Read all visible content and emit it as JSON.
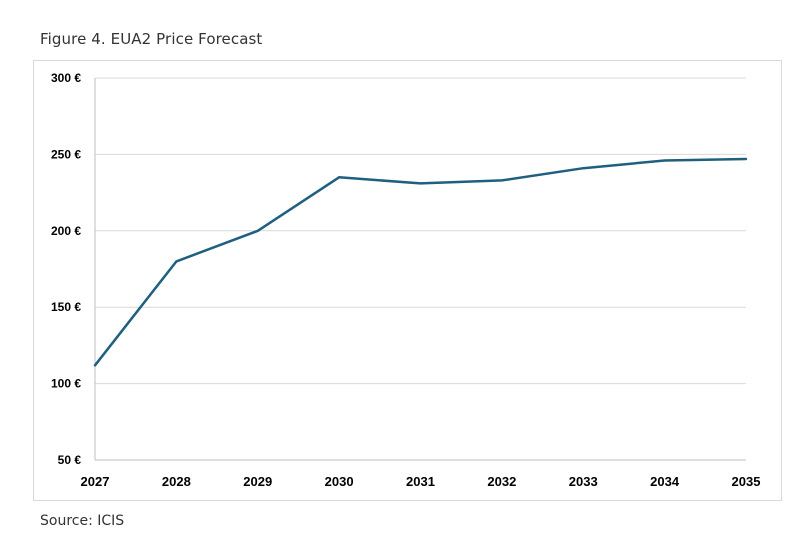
{
  "figure": {
    "caption": "Figure 4. EUA2 Price Forecast",
    "source": "Source: ICIS"
  },
  "colors": {
    "line": "#1f5f7f",
    "grid": "#d9d9d9",
    "axis": "#bfbfbf",
    "text": "#000000"
  },
  "chart_data": {
    "type": "line",
    "title": "",
    "xlabel": "",
    "ylabel": "",
    "categories": [
      "2027",
      "2028",
      "2029",
      "2030",
      "2031",
      "2032",
      "2033",
      "2034",
      "2035"
    ],
    "series": [
      {
        "values": [
          112,
          180,
          200,
          235,
          231,
          233,
          241,
          246,
          247
        ]
      }
    ],
    "ylim": [
      50,
      300
    ],
    "yticks": [
      50,
      100,
      150,
      200,
      250,
      300
    ],
    "ytick_labels": [
      "50 €",
      "100 €",
      "150 €",
      "200 €",
      "250 €",
      "300 €"
    ],
    "grid": true,
    "legend": "none"
  }
}
